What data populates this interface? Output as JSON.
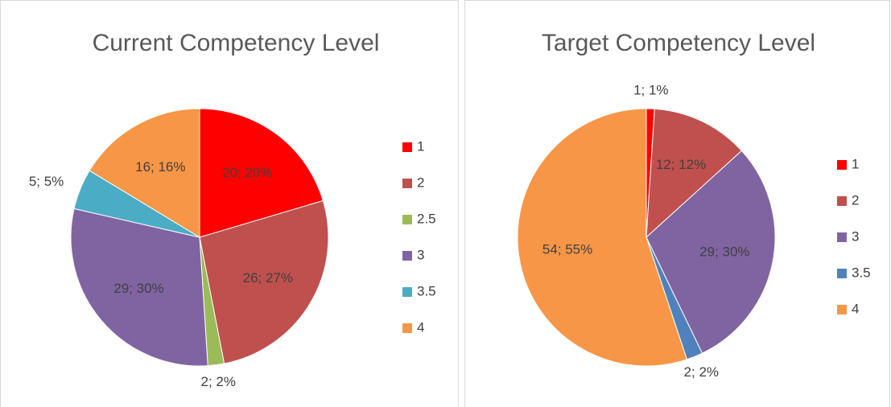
{
  "chart_data": [
    {
      "type": "pie",
      "title": "Current Competency Level",
      "categories": [
        "1",
        "2",
        "2.5",
        "3",
        "3.5",
        "4"
      ],
      "values": [
        20,
        26,
        2,
        29,
        5,
        16
      ],
      "value_labels": [
        "20; 20%",
        "26; 27%",
        "2; 2%",
        "29; 30%",
        "5; 5%",
        "16; 16%"
      ],
      "colors": [
        "#ff0000",
        "#c0504d",
        "#9bbb59",
        "#8064a2",
        "#4bacc6",
        "#f79646"
      ],
      "legend": "right"
    },
    {
      "type": "pie",
      "title": "Target Competency Level",
      "categories": [
        "1",
        "2",
        "3",
        "3.5",
        "4"
      ],
      "values": [
        1,
        12,
        29,
        2,
        54
      ],
      "value_labels": [
        "1; 1%",
        "12; 12%",
        "29; 30%",
        "2; 2%",
        "54; 55%"
      ],
      "colors": [
        "#ff0000",
        "#c0504d",
        "#8064a2",
        "#4f81bd",
        "#f79646"
      ],
      "legend": "right"
    }
  ]
}
